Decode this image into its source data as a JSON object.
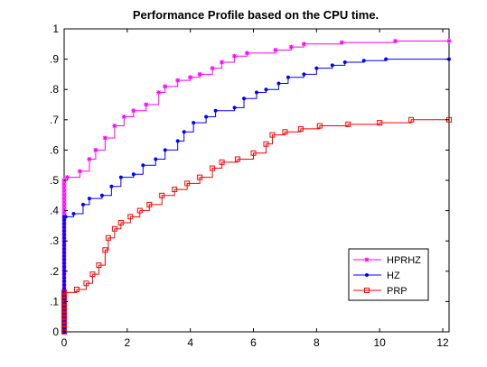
{
  "chart_data": {
    "type": "line",
    "title": "Performance Profile based on the CPU time.",
    "xlabel": "",
    "ylabel": "",
    "xlim": [
      0,
      12.2
    ],
    "ylim": [
      0,
      1
    ],
    "x_ticks": [
      0,
      2,
      4,
      6,
      8,
      10,
      12
    ],
    "x_tick_labels": [
      "0",
      "2",
      "4",
      "6",
      "8",
      "10",
      "12"
    ],
    "y_ticks": [
      0,
      0.1,
      0.2,
      0.3,
      0.4,
      0.5,
      0.6,
      0.7,
      0.8,
      0.9,
      1
    ],
    "y_tick_labels": [
      "0",
      ".1",
      ".2",
      ".3",
      ".4",
      ".5",
      ".6",
      ".7",
      ".8",
      ".9",
      "1"
    ],
    "legend_position": "bottom-right",
    "series": [
      {
        "name": "HPRHZ",
        "color": "#ff00ff",
        "marker": "star",
        "points": [
          [
            0,
            0.5
          ],
          [
            0.1,
            0.51
          ],
          [
            0.5,
            0.53
          ],
          [
            0.8,
            0.57
          ],
          [
            1.0,
            0.6
          ],
          [
            1.3,
            0.64
          ],
          [
            1.6,
            0.68
          ],
          [
            1.9,
            0.71
          ],
          [
            2.2,
            0.73
          ],
          [
            2.6,
            0.75
          ],
          [
            3.0,
            0.79
          ],
          [
            3.2,
            0.81
          ],
          [
            3.6,
            0.83
          ],
          [
            4.0,
            0.84
          ],
          [
            4.3,
            0.85
          ],
          [
            4.7,
            0.87
          ],
          [
            5.0,
            0.89
          ],
          [
            5.4,
            0.91
          ],
          [
            5.8,
            0.92
          ],
          [
            6.7,
            0.93
          ],
          [
            7.2,
            0.94
          ],
          [
            7.6,
            0.95
          ],
          [
            8.8,
            0.955
          ],
          [
            10.5,
            0.96
          ],
          [
            12.2,
            0.96
          ]
        ]
      },
      {
        "name": "HZ",
        "color": "#0000ff",
        "marker": "dot",
        "points": [
          [
            0,
            0.38
          ],
          [
            0.05,
            0.38
          ],
          [
            0.3,
            0.39
          ],
          [
            0.6,
            0.42
          ],
          [
            0.8,
            0.44
          ],
          [
            1.2,
            0.45
          ],
          [
            1.5,
            0.48
          ],
          [
            1.8,
            0.51
          ],
          [
            2.2,
            0.52
          ],
          [
            2.5,
            0.55
          ],
          [
            2.9,
            0.57
          ],
          [
            3.2,
            0.6
          ],
          [
            3.6,
            0.63
          ],
          [
            3.8,
            0.66
          ],
          [
            4.1,
            0.69
          ],
          [
            4.5,
            0.71
          ],
          [
            4.8,
            0.73
          ],
          [
            5.4,
            0.74
          ],
          [
            5.7,
            0.77
          ],
          [
            6.1,
            0.79
          ],
          [
            6.4,
            0.8
          ],
          [
            6.8,
            0.82
          ],
          [
            7.1,
            0.84
          ],
          [
            7.6,
            0.85
          ],
          [
            8.0,
            0.87
          ],
          [
            8.5,
            0.88
          ],
          [
            8.9,
            0.89
          ],
          [
            9.5,
            0.895
          ],
          [
            10.2,
            0.9
          ],
          [
            12.2,
            0.9
          ]
        ]
      },
      {
        "name": "PRP",
        "color": "#ff0000",
        "marker": "square",
        "points": [
          [
            0,
            0.13
          ],
          [
            0.4,
            0.14
          ],
          [
            0.7,
            0.16
          ],
          [
            0.9,
            0.19
          ],
          [
            1.1,
            0.22
          ],
          [
            1.3,
            0.27
          ],
          [
            1.4,
            0.31
          ],
          [
            1.6,
            0.34
          ],
          [
            1.8,
            0.36
          ],
          [
            2.1,
            0.38
          ],
          [
            2.4,
            0.4
          ],
          [
            2.7,
            0.42
          ],
          [
            3.1,
            0.45
          ],
          [
            3.5,
            0.47
          ],
          [
            3.9,
            0.49
          ],
          [
            4.3,
            0.51
          ],
          [
            4.7,
            0.54
          ],
          [
            5.0,
            0.56
          ],
          [
            5.5,
            0.57
          ],
          [
            6.0,
            0.59
          ],
          [
            6.4,
            0.62
          ],
          [
            6.6,
            0.65
          ],
          [
            7.0,
            0.66
          ],
          [
            7.5,
            0.67
          ],
          [
            8.1,
            0.68
          ],
          [
            9.0,
            0.685
          ],
          [
            10.0,
            0.69
          ],
          [
            11.0,
            0.7
          ],
          [
            12.2,
            0.7
          ]
        ]
      }
    ]
  }
}
